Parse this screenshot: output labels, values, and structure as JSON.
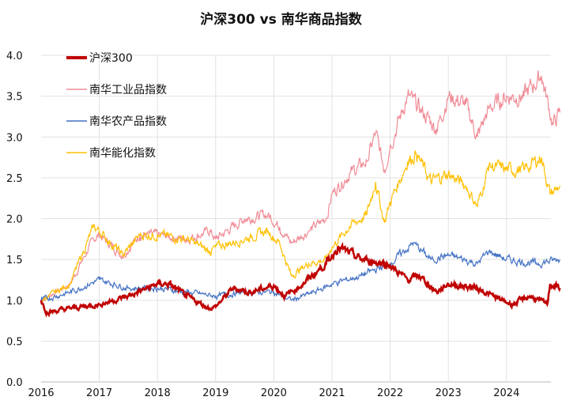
{
  "chart_data": {
    "type": "line",
    "title": "沪深300 vs 南华商品指数",
    "xlabel": "",
    "ylabel": "",
    "xlim": [
      2016,
      2024.92
    ],
    "ylim": [
      0,
      4
    ],
    "x_ticks": [
      "2016",
      "2017",
      "2018",
      "2019",
      "2020",
      "2021",
      "2022",
      "2023",
      "2024"
    ],
    "y_ticks": [
      "0.0",
      "0.5",
      "1.0",
      "1.5",
      "2.0",
      "2.5",
      "3.0",
      "3.5",
      "4.0"
    ],
    "grid": true,
    "legend": "top-left",
    "series": [
      {
        "name": "沪深300",
        "color": "#c00000",
        "x": [
          2016,
          2016.1,
          2016.5,
          2017,
          2017.5,
          2018,
          2018.2,
          2018.5,
          2018.9,
          2019,
          2019.3,
          2019.6,
          2020,
          2020.2,
          2020.5,
          2020.9,
          2021.1,
          2021.5,
          2021.9,
          2022,
          2022.3,
          2022.5,
          2022.8,
          2023,
          2023.5,
          2023.9,
          2024.1,
          2024.4,
          2024.7,
          2024.75,
          2024.92
        ],
        "values": [
          1.0,
          0.85,
          0.9,
          0.95,
          1.05,
          1.2,
          1.2,
          1.05,
          0.9,
          0.92,
          1.15,
          1.1,
          1.18,
          1.05,
          1.2,
          1.45,
          1.65,
          1.5,
          1.45,
          1.42,
          1.25,
          1.3,
          1.1,
          1.2,
          1.15,
          1.0,
          0.95,
          1.05,
          0.95,
          1.2,
          1.15
        ]
      },
      {
        "name": "南华工业品指数",
        "color": "#f08c96",
        "x": [
          2016,
          2016.5,
          2016.9,
          2017,
          2017.4,
          2017.7,
          2018,
          2018.5,
          2018.9,
          2019,
          2019.5,
          2019.9,
          2020.1,
          2020.3,
          2020.6,
          2020.9,
          2021,
          2021.3,
          2021.6,
          2021.75,
          2021.9,
          2022,
          2022.3,
          2022.5,
          2022.8,
          2023,
          2023.3,
          2023.5,
          2023.7,
          2024,
          2024.3,
          2024.6,
          2024.8,
          2024.92
        ],
        "values": [
          1.0,
          1.2,
          1.75,
          1.8,
          1.55,
          1.8,
          1.8,
          1.75,
          1.85,
          1.75,
          2.0,
          2.05,
          1.9,
          1.7,
          1.85,
          2.0,
          2.3,
          2.55,
          2.7,
          3.05,
          2.6,
          2.9,
          3.5,
          3.35,
          3.1,
          3.5,
          3.4,
          3.0,
          3.35,
          3.5,
          3.5,
          3.75,
          3.15,
          3.3
        ]
      },
      {
        "name": "南华农产品指数",
        "color": "#4472c4",
        "x": [
          2016,
          2016.5,
          2017,
          2017.5,
          2018,
          2018.5,
          2019,
          2019.5,
          2020,
          2020.3,
          2020.7,
          2021,
          2021.5,
          2022,
          2022.4,
          2022.7,
          2023,
          2023.5,
          2023.7,
          2024,
          2024.5,
          2024.92
        ],
        "values": [
          1.0,
          1.1,
          1.25,
          1.15,
          1.15,
          1.1,
          1.05,
          1.1,
          1.1,
          1.0,
          1.1,
          1.2,
          1.3,
          1.45,
          1.7,
          1.5,
          1.55,
          1.45,
          1.6,
          1.5,
          1.45,
          1.5
        ]
      },
      {
        "name": "南华能化指数",
        "color": "#ffc000",
        "x": [
          2016,
          2016.5,
          2016.9,
          2017,
          2017.4,
          2017.7,
          2018,
          2018.5,
          2018.9,
          2019,
          2019.5,
          2019.9,
          2020.1,
          2020.3,
          2020.6,
          2020.9,
          2021,
          2021.3,
          2021.6,
          2021.75,
          2021.9,
          2022,
          2022.3,
          2022.45,
          2022.7,
          2023,
          2023.3,
          2023.5,
          2023.7,
          2024,
          2024.3,
          2024.6,
          2024.75,
          2024.92
        ],
        "values": [
          1.0,
          1.2,
          1.9,
          1.85,
          1.55,
          1.8,
          1.8,
          1.75,
          1.6,
          1.65,
          1.75,
          1.85,
          1.7,
          1.3,
          1.45,
          1.5,
          1.65,
          1.9,
          2.05,
          2.45,
          1.95,
          2.2,
          2.7,
          2.8,
          2.45,
          2.55,
          2.4,
          2.15,
          2.65,
          2.6,
          2.6,
          2.75,
          2.3,
          2.4
        ]
      }
    ]
  }
}
